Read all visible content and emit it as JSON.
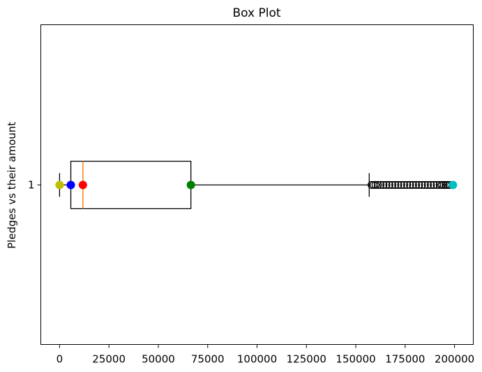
{
  "chart_data": {
    "type": "boxplot",
    "title": "Box Plot",
    "xlabel": "",
    "ylabel": "Pledges vs their amount",
    "orientation": "horizontal",
    "xlim": [
      -9500,
      209500
    ],
    "x_ticks": [
      0,
      25000,
      50000,
      75000,
      100000,
      125000,
      150000,
      175000,
      200000
    ],
    "x_tick_labels": [
      "0",
      "25000",
      "50000",
      "75000",
      "100000",
      "125000",
      "150000",
      "175000",
      "200000"
    ],
    "y_ticks": [
      1
    ],
    "y_tick_labels": [
      "1"
    ],
    "box": {
      "category": "1",
      "whisker_low": 0,
      "q1": 5700,
      "median": 11800,
      "q3": 66500,
      "whisker_high": 156800
    },
    "outliers": [
      158000,
      159000,
      160000,
      161200,
      162500,
      164000,
      165500,
      167000,
      168500,
      170000,
      171500,
      173000,
      174500,
      176000,
      177500,
      179000,
      180500,
      182000,
      183500,
      185000,
      186500,
      188000,
      189500,
      191000,
      192500,
      193500,
      194500,
      195500,
      196500,
      197500
    ],
    "marked_points": [
      {
        "x": 0,
        "color": "#bfbf00"
      },
      {
        "x": 5700,
        "color": "#0000ff"
      },
      {
        "x": 11800,
        "color": "#ff0000"
      },
      {
        "x": 66500,
        "color": "#008000"
      },
      {
        "x": 199200,
        "color": "#00bfbf"
      }
    ],
    "colors": {
      "box": "#000000",
      "median": "#ff7f0e",
      "outlier": "#000000"
    },
    "grid": false
  }
}
